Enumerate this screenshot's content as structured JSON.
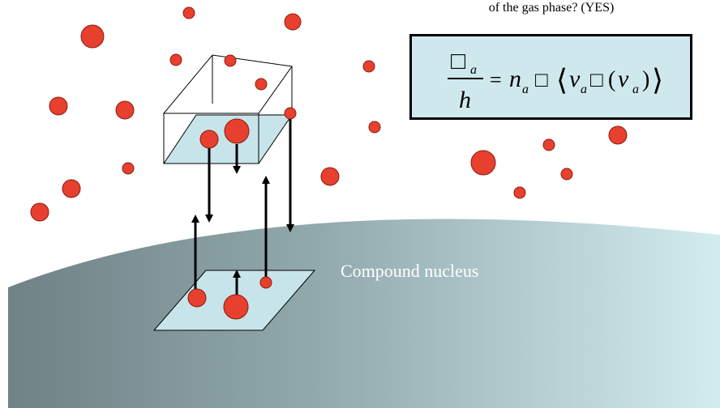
{
  "caption": "of the gas phase? (YES)",
  "nucleus_label": "Compound nucleus",
  "formula": {
    "numerator": "□",
    "numerator_sub": "a",
    "denominator": "h",
    "equals": "=",
    "n": "n",
    "n_sub": "a",
    "box": "□",
    "left_angle": "⟨",
    "v": "v",
    "v_sub": "a",
    "box2": "□",
    "open_paren": "(",
    "v2": "v",
    "v2_sub": "a",
    "close_paren": ")",
    "right_angle": "⟩"
  },
  "colors": {
    "particle": "#e8402e",
    "particle_stroke": "#8a1a10",
    "surface_light": "#c9e6ea",
    "surface_dark": "#6f8286",
    "window_fill": "#c7e4ea",
    "formula_bg": "#cfe8ed"
  }
}
